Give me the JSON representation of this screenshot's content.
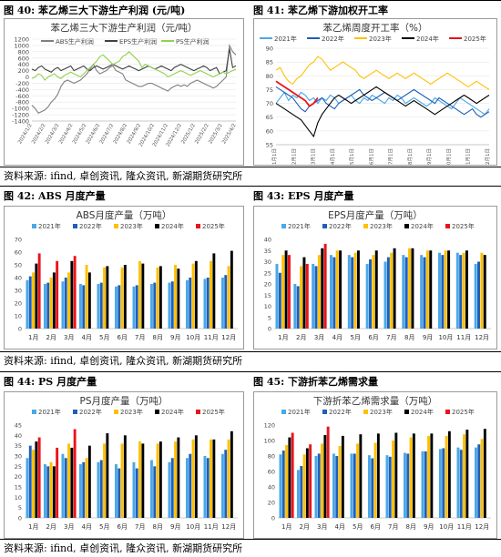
{
  "captions": {
    "fig40": "图 40: 苯乙烯三大下游生产利润 (元/吨)",
    "fig41": "图 41: 苯乙烯下游加权开工率",
    "fig42": "图 42: ABS 月度产量",
    "fig43": "图 43: EPS 月度产量",
    "fig44": "图 44: PS 月度产量",
    "fig45": "图 45: 下游折苯乙烯需求量"
  },
  "source_text": "资料来源: ifind, 卓创资讯, 隆众资讯, 新湖期货研究所",
  "colors": {
    "y2021": "#4aa8e8",
    "y2022": "#1f5fb8",
    "y2023": "#ffc000",
    "y2024": "#000000",
    "y2025": "#e8141c",
    "abs": "#7f7f7f",
    "eps": "#404040",
    "ps": "#92d050"
  },
  "chart_data": [
    {
      "id": "profit",
      "type": "line",
      "title": "苯乙烯三大下游生产利润（元/吨）",
      "ylim": [
        -1400,
        1200
      ],
      "yticks": [
        1200,
        1000,
        800,
        600,
        400,
        200,
        0,
        -200,
        -400,
        -600,
        -800,
        -1000,
        -1200,
        -1400
      ],
      "xticks": [
        "2024/1/2",
        "2024/2/2",
        "2024/3/2",
        "2024/4/2",
        "2024/5/2",
        "2024/6/2",
        "2024/7/2",
        "2024/8/2",
        "2024/9/2",
        "2024/10/2",
        "2024/11/2",
        "2024/12/2",
        "2025/1/2",
        "2025/2/2",
        "2025/3/2",
        "2025/4/2"
      ],
      "series": [
        {
          "name": "ABS生产利润",
          "color": "#7f7f7f",
          "values": [
            -900,
            -1000,
            -1150,
            -1100,
            -1050,
            -950,
            -800,
            -700,
            -550,
            -300,
            -150,
            -100,
            -150,
            -200,
            -150,
            -100,
            0,
            100,
            250,
            400,
            200,
            100,
            150,
            200,
            300,
            350,
            200,
            150,
            100,
            -100,
            -150,
            -200,
            -250,
            -300,
            -300,
            -250,
            -200,
            -200,
            -250,
            -300,
            -350,
            -400,
            -450,
            -350,
            -300,
            -250,
            -300,
            -250,
            -300,
            -200,
            -150,
            -100,
            -150,
            -200,
            -250,
            -300,
            -350,
            -300,
            -200,
            -100,
            0,
            1000,
            800,
            700
          ]
        },
        {
          "name": "EPS生产利润",
          "color": "#404040",
          "values": [
            250,
            200,
            300,
            350,
            250,
            200,
            150,
            250,
            300,
            200,
            250,
            300,
            350,
            200,
            250,
            300,
            350,
            250,
            200,
            300,
            350,
            300,
            250,
            300,
            350,
            400,
            350,
            300,
            250,
            300,
            350,
            300,
            250,
            200,
            250,
            300,
            350,
            300,
            250,
            300,
            350,
            300,
            250,
            200,
            300,
            350,
            400,
            350,
            300,
            250,
            200,
            250,
            300,
            350,
            300,
            200,
            250,
            300,
            100,
            150,
            200,
            900,
            300,
            350
          ]
        },
        {
          "name": "PS生产利润",
          "color": "#92d050",
          "values": [
            -50,
            0,
            100,
            50,
            -100,
            0,
            50,
            100,
            0,
            -50,
            50,
            100,
            150,
            100,
            50,
            0,
            100,
            200,
            300,
            400,
            500,
            650,
            700,
            600,
            500,
            400,
            450,
            500,
            650,
            700,
            800,
            700,
            600,
            500,
            300,
            400,
            350,
            300,
            250,
            200,
            150,
            100,
            0,
            50,
            100,
            150,
            200,
            150,
            100,
            50,
            100,
            150,
            200,
            150,
            100,
            50,
            0,
            50,
            100,
            150,
            100,
            150,
            200,
            250
          ]
        }
      ]
    },
    {
      "id": "oprate",
      "type": "line",
      "title": "苯乙烯周度开工率（%）",
      "ylim": [
        55,
        90
      ],
      "yticks": [
        90,
        85,
        80,
        75,
        70,
        65,
        60,
        55
      ],
      "xticks": [
        "1月1日",
        "2月1日",
        "3月1日",
        "4月1日",
        "5月1日",
        "6月1日",
        "7月1日",
        "8月1日",
        "9月1日",
        "10月1日",
        "11月1日",
        "12月1日"
      ],
      "series": [
        {
          "name": "2021年",
          "color": "#4aa8e8",
          "values": [
            70,
            72,
            74,
            71,
            73,
            72,
            74,
            73,
            71,
            72,
            70,
            72,
            71,
            73,
            72,
            70,
            71,
            72,
            73,
            71,
            70,
            72,
            71,
            73,
            72,
            71,
            70,
            72,
            71,
            73,
            72,
            70,
            71,
            72,
            71,
            70,
            69,
            70,
            72,
            71,
            70,
            69,
            68,
            70,
            72,
            71,
            70,
            69,
            68,
            67,
            66,
            68
          ]
        },
        {
          "name": "2022年",
          "color": "#1f5fb8",
          "values": [
            76,
            75,
            74,
            73,
            72,
            70,
            68,
            67,
            69,
            70,
            71,
            72,
            70,
            69,
            68,
            70,
            71,
            72,
            73,
            74,
            75,
            73,
            72,
            71,
            72,
            73,
            74,
            73,
            72,
            71,
            72,
            73,
            74,
            75,
            74,
            73,
            72,
            71,
            70,
            72,
            71,
            70,
            69,
            68,
            67,
            66,
            67,
            68,
            66,
            65,
            66,
            67
          ]
        },
        {
          "name": "2023年",
          "color": "#ffc000",
          "values": [
            82,
            83,
            80,
            78,
            77,
            79,
            80,
            82,
            84,
            85,
            87,
            86,
            84,
            82,
            83,
            84,
            85,
            84,
            83,
            82,
            80,
            79,
            80,
            81,
            82,
            81,
            80,
            79,
            80,
            81,
            80,
            79,
            80,
            81,
            80,
            79,
            78,
            77,
            78,
            79,
            80,
            81,
            80,
            79,
            78,
            77,
            76,
            77,
            78,
            77,
            76,
            75
          ]
        },
        {
          "name": "2024年",
          "color": "#000000",
          "values": [
            70,
            69,
            68,
            67,
            66,
            65,
            64,
            62,
            60,
            58,
            63,
            66,
            68,
            70,
            72,
            73,
            72,
            71,
            70,
            71,
            72,
            73,
            74,
            75,
            76,
            75,
            74,
            73,
            72,
            71,
            70,
            69,
            70,
            71,
            70,
            69,
            68,
            67,
            66,
            67,
            68,
            69,
            70,
            71,
            72,
            73,
            72,
            71,
            70,
            71,
            72,
            73
          ]
        },
        {
          "name": "2025年",
          "color": "#e8141c",
          "values": [
            78,
            77,
            76,
            75,
            74,
            73,
            72,
            71,
            69,
            70,
            72
          ]
        }
      ]
    },
    {
      "id": "abs",
      "type": "bar",
      "title": "ABS月度产量（万吨）",
      "ylim": [
        0,
        70
      ],
      "yticks": [
        70,
        60,
        50,
        40,
        30,
        20,
        10,
        0
      ],
      "categories": [
        "1月",
        "2月",
        "3月",
        "4月",
        "5月",
        "6月",
        "7月",
        "8月",
        "9月",
        "10月",
        "11月",
        "12月"
      ],
      "series": [
        {
          "name": "2021年",
          "color": "#4aa8e8",
          "values": [
            38,
            35,
            37,
            35,
            35,
            33,
            33,
            35,
            36,
            38,
            39,
            40
          ]
        },
        {
          "name": "2022年",
          "color": "#1f5fb8",
          "values": [
            41,
            36,
            40,
            34,
            36,
            34,
            34,
            36,
            37,
            40,
            40,
            42
          ]
        },
        {
          "name": "2023年",
          "color": "#ffc000",
          "values": [
            44,
            40,
            44,
            50,
            48,
            48,
            53,
            48,
            50,
            51,
            53,
            49
          ]
        },
        {
          "name": "2024年",
          "color": "#000000",
          "values": [
            51,
            44,
            53,
            44,
            49,
            50,
            51,
            49,
            47,
            53,
            59,
            61
          ]
        },
        {
          "name": "2025年",
          "color": "#e8141c",
          "values": [
            59,
            53,
            57,
            null,
            null,
            null,
            null,
            null,
            null,
            null,
            null,
            null
          ]
        }
      ]
    },
    {
      "id": "eps",
      "type": "bar",
      "title": "EPS月度产量（万吨）",
      "ylim": [
        0,
        40
      ],
      "yticks": [
        40,
        35,
        30,
        25,
        20,
        15,
        10,
        5,
        0
      ],
      "categories": [
        "1月",
        "2月",
        "3月",
        "4月",
        "5月",
        "6月",
        "7月",
        "8月",
        "9月",
        "10月",
        "11月",
        "12月"
      ],
      "series": [
        {
          "name": "2021年",
          "color": "#4aa8e8",
          "values": [
            29,
            20,
            29,
            33,
            33,
            29,
            30,
            33,
            33,
            34,
            34,
            29
          ]
        },
        {
          "name": "2022年",
          "color": "#1f5fb8",
          "values": [
            25,
            19,
            28,
            32,
            32,
            31,
            32,
            32,
            32,
            33,
            33,
            30
          ]
        },
        {
          "name": "2023年",
          "color": "#ffc000",
          "values": [
            33,
            28,
            33,
            35,
            34,
            33,
            34,
            36,
            35,
            35,
            34,
            34
          ]
        },
        {
          "name": "2024年",
          "color": "#000000",
          "values": [
            35,
            32,
            36,
            35,
            35,
            35,
            36,
            36,
            35,
            35,
            35,
            33
          ]
        },
        {
          "name": "2025年",
          "color": "#e8141c",
          "values": [
            33,
            29,
            38,
            null,
            null,
            null,
            null,
            null,
            null,
            null,
            null,
            null
          ]
        }
      ]
    },
    {
      "id": "ps",
      "type": "bar",
      "title": "PS月度产量（万吨）",
      "ylim": [
        0,
        45
      ],
      "yticks": [
        45,
        40,
        35,
        30,
        25,
        20,
        15,
        10,
        5,
        0
      ],
      "categories": [
        "1月",
        "2月",
        "3月",
        "4月",
        "5月",
        "6月",
        "7月",
        "8月",
        "9月",
        "10月",
        "11月",
        "12月"
      ],
      "series": [
        {
          "name": "2021年",
          "color": "#4aa8e8",
          "values": [
            29,
            26,
            31,
            26,
            27,
            26,
            27,
            28,
            27,
            29,
            30,
            31
          ]
        },
        {
          "name": "2022年",
          "color": "#1f5fb8",
          "values": [
            35,
            25,
            29,
            27,
            28,
            24,
            24,
            25,
            29,
            31,
            29,
            33
          ]
        },
        {
          "name": "2023年",
          "color": "#ffc000",
          "values": [
            33,
            27,
            36,
            29,
            36,
            36,
            37,
            36,
            37,
            38,
            38,
            38
          ]
        },
        {
          "name": "2024年",
          "color": "#000000",
          "values": [
            37,
            25,
            34,
            35,
            41,
            40,
            36,
            37,
            39,
            40,
            38,
            42
          ]
        },
        {
          "name": "2025年",
          "color": "#e8141c",
          "values": [
            39,
            34,
            43,
            null,
            null,
            null,
            null,
            null,
            null,
            null,
            null,
            null
          ]
        }
      ]
    },
    {
      "id": "demand",
      "type": "bar",
      "title": "下游折苯乙烯需求量（万吨）",
      "ylim": [
        0,
        120
      ],
      "yticks": [
        120,
        100,
        80,
        60,
        40,
        20,
        0
      ],
      "categories": [
        "1月",
        "2月",
        "3月",
        "4月",
        "5月",
        "6月",
        "7月",
        "8月",
        "9月",
        "10月",
        "11月",
        "12月"
      ],
      "series": [
        {
          "name": "2021年",
          "color": "#4aa8e8",
          "values": [
            82,
            62,
            80,
            83,
            83,
            81,
            81,
            84,
            86,
            89,
            91,
            91
          ]
        },
        {
          "name": "2022年",
          "color": "#1f5fb8",
          "values": [
            87,
            67,
            83,
            80,
            83,
            77,
            79,
            83,
            86,
            90,
            88,
            95
          ]
        },
        {
          "name": "2023年",
          "color": "#ffc000",
          "values": [
            94,
            82,
            96,
            93,
            96,
            97,
            100,
            104,
            106,
            106,
            108,
            102
          ]
        },
        {
          "name": "2024年",
          "color": "#000000",
          "values": [
            104,
            90,
            107,
            106,
            108,
            109,
            110,
            109,
            109,
            112,
            114,
            115
          ]
        },
        {
          "name": "2025年",
          "color": "#e8141c",
          "values": [
            110,
            95,
            118,
            null,
            null,
            null,
            null,
            null,
            null,
            null,
            null,
            null
          ]
        }
      ]
    }
  ]
}
